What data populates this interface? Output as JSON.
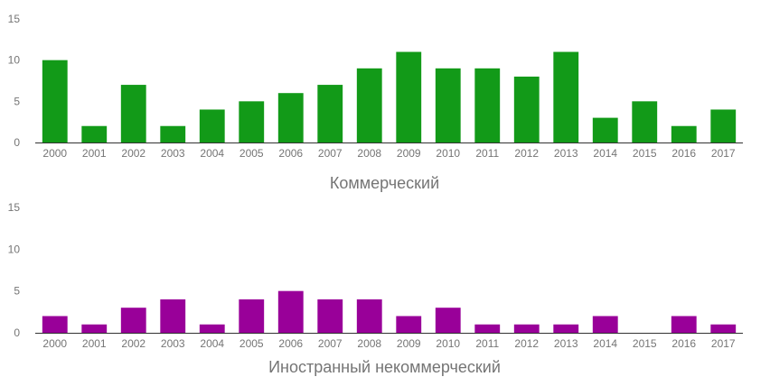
{
  "chart_data": [
    {
      "type": "bar",
      "title": "Коммерческий",
      "xlabel": "Коммерческий",
      "ylabel": "",
      "ylim": [
        0,
        15
      ],
      "yticks": [
        0,
        5,
        10,
        15
      ],
      "grid": false,
      "color": "#129a18",
      "categories": [
        "2000",
        "2001",
        "2002",
        "2003",
        "2004",
        "2005",
        "2006",
        "2007",
        "2008",
        "2009",
        "2010",
        "2011",
        "2012",
        "2013",
        "2014",
        "2015",
        "2016",
        "2017"
      ],
      "values": [
        10,
        2,
        7,
        2,
        4,
        5,
        6,
        7,
        9,
        11,
        9,
        9,
        8,
        11,
        3,
        5,
        2,
        4
      ]
    },
    {
      "type": "bar",
      "title": "Иностранный некоммерческий",
      "xlabel": "Иностранный некоммерческий",
      "ylabel": "",
      "ylim": [
        0,
        15
      ],
      "yticks": [
        0,
        5,
        10,
        15
      ],
      "grid": false,
      "color": "#990099",
      "categories": [
        "2000",
        "2001",
        "2002",
        "2003",
        "2004",
        "2005",
        "2006",
        "2007",
        "2008",
        "2009",
        "2010",
        "2011",
        "2012",
        "2013",
        "2014",
        "2015",
        "2016",
        "2017"
      ],
      "values": [
        2,
        1,
        3,
        4,
        1,
        4,
        5,
        4,
        4,
        2,
        3,
        1,
        1,
        1,
        2,
        0,
        2,
        1
      ]
    }
  ]
}
